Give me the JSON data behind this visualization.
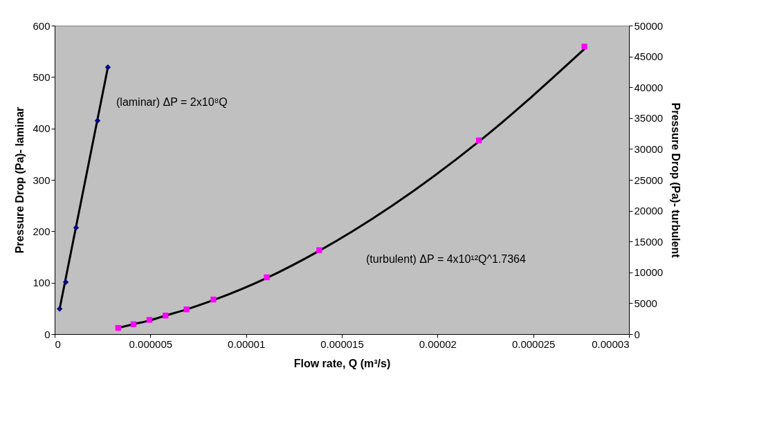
{
  "chart_data": {
    "type": "scatter",
    "xlabel": "Flow rate, Q (m³/s)",
    "ylabel": "Pressure Drop (Pa)- laminar",
    "y2label": "Pressure Drop (Pa)- turbulent",
    "xlim": [
      0,
      3e-05
    ],
    "xticks": [
      0,
      {
        "value": 5e-06,
        "label": "0.000005"
      },
      {
        "value": 1e-05,
        "label": "0.00001"
      },
      {
        "value": 1.5e-05,
        "label": "0.000015"
      },
      {
        "value": 2e-05,
        "label": "0.00002"
      },
      {
        "value": 2.5e-05,
        "label": "0.000025"
      },
      {
        "value": 3e-05,
        "label": "0.00003"
      }
    ],
    "ylim": [
      0,
      600
    ],
    "yticks": [
      0,
      100,
      200,
      300,
      400,
      500,
      600
    ],
    "y2lim": [
      0,
      50000
    ],
    "y2ticks": [
      0,
      5000,
      10000,
      15000,
      20000,
      25000,
      30000,
      35000,
      40000,
      45000,
      50000
    ],
    "grid": false,
    "series": [
      {
        "type": "line",
        "color": "#000000",
        "marker": "none",
        "line_style": "solid",
        "x": [
          2.6e-07,
          2.78e-06
        ],
        "values": [
          49,
          519
        ]
      },
      {
        "color": "#000080",
        "marker": "diamond",
        "x": [
          2.6e-07,
          5.8e-07,
          1.12e-06,
          2.24e-06,
          2.78e-06
        ],
        "values": [
          49,
          101,
          207,
          415,
          519
        ]
      },
      {
        "type": "line",
        "axis": "y2",
        "color": "#000000",
        "marker": "none",
        "line_style": "solid",
        "x": [
          3.32e-06,
          4.12e-06,
          4.95e-06,
          5.79e-06,
          6.89e-06,
          8.29e-06,
          1.108e-05,
          1.382e-05,
          2.216e-05,
          2.767e-05
        ],
        "values": [
          1000,
          1600,
          2200,
          3000,
          4000,
          5500,
          9100,
          13500,
          31200,
          46200
        ]
      },
      {
        "axis": "y2",
        "color": "#ff00ff",
        "marker": "square",
        "x": [
          3.32e-06,
          4.12e-06,
          4.95e-06,
          5.79e-06,
          6.89e-06,
          8.29e-06,
          1.108e-05,
          1.382e-05,
          2.216e-05,
          2.767e-05
        ],
        "values": [
          1000,
          1600,
          2300,
          3000,
          4000,
          5600,
          9200,
          13600,
          31400,
          46600
        ]
      }
    ],
    "annotations": [
      "(laminar) ΔP = 2x10⁸Q",
      "(turbulent) ΔP = 4x10¹²Q^1.7364"
    ]
  }
}
